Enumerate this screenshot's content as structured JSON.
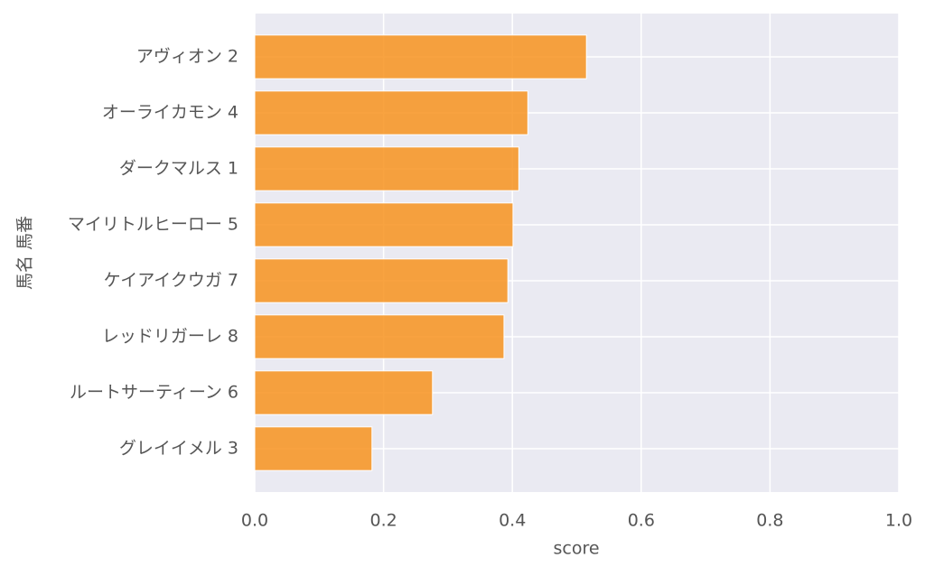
{
  "chart_data": {
    "type": "barh",
    "xlabel": "score",
    "ylabel": "馬名 馬番",
    "categories": [
      "アヴィオン 2",
      "オーライカモン 4",
      "ダークマルス 1",
      "マイリトルヒーロー 5",
      "ケイアイクウガ 7",
      "レッドリガーレ 8",
      "ルートサーティーン 6",
      "グレイイメル 3"
    ],
    "values": [
      0.515,
      0.424,
      0.41,
      0.401,
      0.393,
      0.387,
      0.276,
      0.182
    ],
    "color": "#f7931e",
    "xlim": [
      0,
      1
    ],
    "xticks": [
      {
        "value": 0,
        "label": "0.0"
      },
      {
        "value": 0.2,
        "label": "0.2"
      },
      {
        "value": 0.4,
        "label": "0.4"
      },
      {
        "value": 0.6,
        "label": "0.6"
      },
      {
        "value": 0.8,
        "label": "0.8"
      },
      {
        "value": 1,
        "label": "1.0"
      }
    ],
    "grid": true
  }
}
